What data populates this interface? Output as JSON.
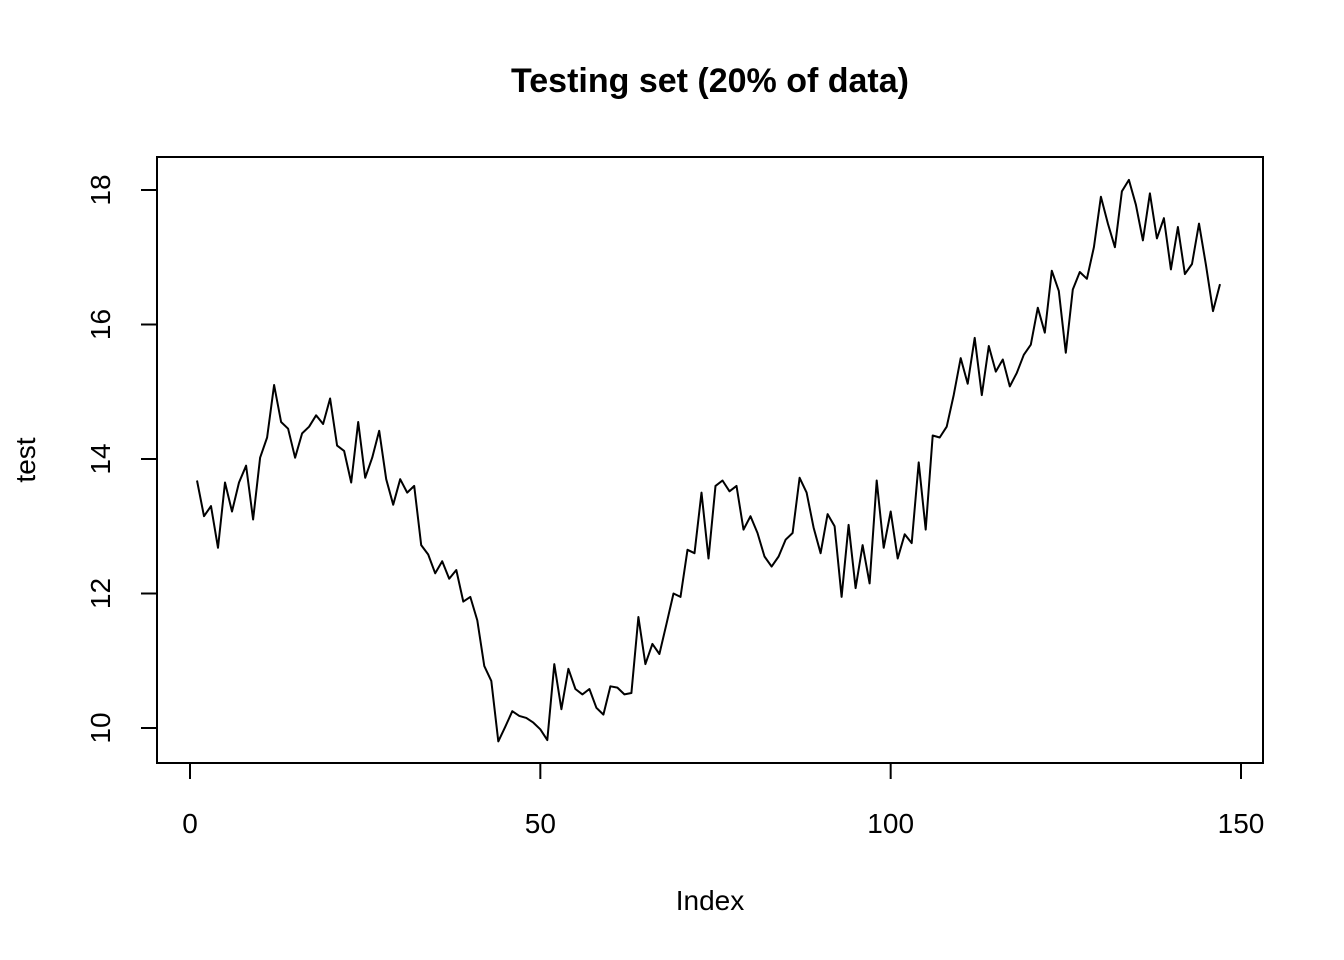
{
  "chart_data": {
    "type": "line",
    "title": "Testing set (20% of data)",
    "xlabel": "Index",
    "ylabel": "test",
    "xlim": [
      0,
      150
    ],
    "ylim": [
      10,
      18
    ],
    "x_ticks": [
      0,
      50,
      100,
      150
    ],
    "y_ticks": [
      10,
      12,
      14,
      16,
      18
    ],
    "grid": false,
    "series": [
      {
        "color": "#000000",
        "x": [
          1,
          2,
          3,
          4,
          5,
          6,
          7,
          8,
          9,
          10,
          11,
          12,
          13,
          14,
          15,
          16,
          17,
          18,
          19,
          20,
          21,
          22,
          23,
          24,
          25,
          26,
          27,
          28,
          29,
          30,
          31,
          32,
          33,
          34,
          35,
          36,
          37,
          38,
          39,
          40,
          41,
          42,
          43,
          44,
          45,
          46,
          47,
          48,
          49,
          50,
          51,
          52,
          53,
          54,
          55,
          56,
          57,
          58,
          59,
          60,
          61,
          62,
          63,
          64,
          65,
          66,
          67,
          68,
          69,
          70,
          71,
          72,
          73,
          74,
          75,
          76,
          77,
          78,
          79,
          80,
          81,
          82,
          83,
          84,
          85,
          86,
          87,
          88,
          89,
          90,
          91,
          92,
          93,
          94,
          95,
          96,
          97,
          98,
          99,
          100,
          101,
          102,
          103,
          104,
          105,
          106,
          107,
          108,
          109,
          110,
          111,
          112,
          113,
          114,
          115,
          116,
          117,
          118,
          119,
          120,
          121,
          122,
          123,
          124,
          125,
          126,
          127,
          128,
          129,
          130,
          131,
          132,
          133,
          134,
          135,
          136,
          137,
          138,
          139,
          140,
          141,
          142,
          143,
          144,
          145,
          146,
          147
        ],
        "values": [
          13.68,
          13.15,
          13.3,
          12.68,
          13.65,
          13.22,
          13.65,
          13.9,
          13.1,
          14.02,
          14.32,
          15.1,
          14.55,
          14.45,
          14.02,
          14.38,
          14.48,
          14.65,
          14.52,
          14.9,
          14.2,
          14.12,
          13.65,
          14.55,
          13.72,
          14.02,
          14.42,
          13.7,
          13.32,
          13.7,
          13.5,
          13.6,
          12.72,
          12.58,
          12.3,
          12.48,
          12.22,
          12.35,
          11.88,
          11.95,
          11.6,
          10.92,
          10.7,
          9.8,
          10.02,
          10.25,
          10.18,
          10.15,
          10.08,
          9.98,
          9.82,
          10.95,
          10.28,
          10.88,
          10.58,
          10.5,
          10.58,
          10.3,
          10.2,
          10.62,
          10.6,
          10.5,
          10.52,
          11.65,
          10.95,
          11.25,
          11.1,
          11.55,
          12.0,
          11.95,
          12.65,
          12.6,
          13.5,
          12.52,
          13.6,
          13.68,
          13.52,
          13.6,
          12.95,
          13.15,
          12.9,
          12.55,
          12.4,
          12.55,
          12.8,
          12.9,
          13.72,
          13.5,
          12.98,
          12.6,
          13.18,
          13.0,
          11.95,
          13.02,
          12.08,
          12.72,
          12.15,
          13.68,
          12.68,
          13.22,
          12.52,
          12.88,
          12.75,
          13.95,
          12.95,
          14.35,
          14.32,
          14.48,
          14.95,
          15.5,
          15.12,
          15.8,
          14.95,
          15.68,
          15.3,
          15.48,
          15.08,
          15.28,
          15.55,
          15.7,
          16.25,
          15.88,
          16.8,
          16.5,
          15.58,
          16.52,
          16.78,
          16.68,
          17.15,
          17.9,
          17.5,
          17.15,
          17.98,
          18.15,
          17.78,
          17.25,
          17.95,
          17.28,
          17.58,
          16.82,
          17.45,
          16.75,
          16.9,
          17.5,
          16.88,
          16.2,
          16.6
        ]
      }
    ]
  }
}
